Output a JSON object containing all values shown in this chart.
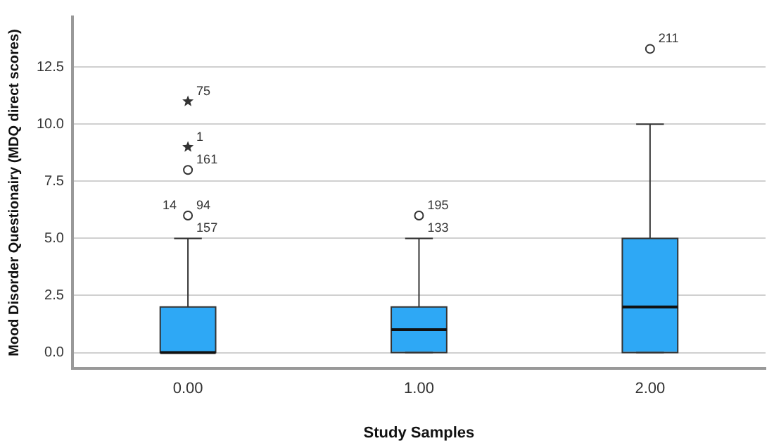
{
  "chart_data": {
    "type": "box",
    "xlabel": "Study Samples",
    "ylabel": "Mood Disorder Questionairy (MDQ direct scores)",
    "categories": [
      "0.00",
      "1.00",
      "2.00"
    ],
    "series": [
      {
        "color": "#2ea8f5",
        "boxes": [
          {
            "low": 0,
            "q1": 0,
            "median": 0,
            "q3": 2,
            "high": 5
          },
          {
            "low": 0,
            "q1": 0,
            "median": 1,
            "q3": 2,
            "high": 5
          },
          {
            "low": 0,
            "q1": 0,
            "median": 2,
            "q3": 5,
            "high": 10
          }
        ]
      },
      {
        "type": "scatter",
        "marker": "circle",
        "color": "#333333",
        "x": [
          "0.00",
          "0.00",
          "1.00",
          "2.00"
        ],
        "values": [
          6,
          8,
          6,
          13.3
        ]
      },
      {
        "type": "scatter",
        "marker": "star",
        "color": "#333333",
        "x": [
          "0.00",
          "0.00"
        ],
        "values": [
          9,
          11
        ]
      }
    ],
    "annotations": [
      {
        "text": "75",
        "x": "0.00",
        "y": 11
      },
      {
        "text": "1",
        "x": "0.00",
        "y": 9
      },
      {
        "text": "161",
        "x": "0.00",
        "y": 8
      },
      {
        "text": "94",
        "x": "0.00",
        "y": 6
      },
      {
        "text": "157",
        "x": "0.00",
        "y": 6
      },
      {
        "text": "14",
        "x": "0.00",
        "y": 6
      },
      {
        "text": "195",
        "x": "1.00",
        "y": 6
      },
      {
        "text": "133",
        "x": "1.00",
        "y": 6
      },
      {
        "text": "211",
        "x": "2.00",
        "y": 13.3
      }
    ],
    "ylim": [
      -0.7,
      14.7
    ],
    "yticks": [
      {
        "value": 0,
        "label": "0.0"
      },
      2.5,
      {
        "value": 5,
        "label": "5.0"
      },
      7.5,
      {
        "value": 10,
        "label": "10.0"
      },
      12.5
    ],
    "grid": "y",
    "legend": false
  }
}
